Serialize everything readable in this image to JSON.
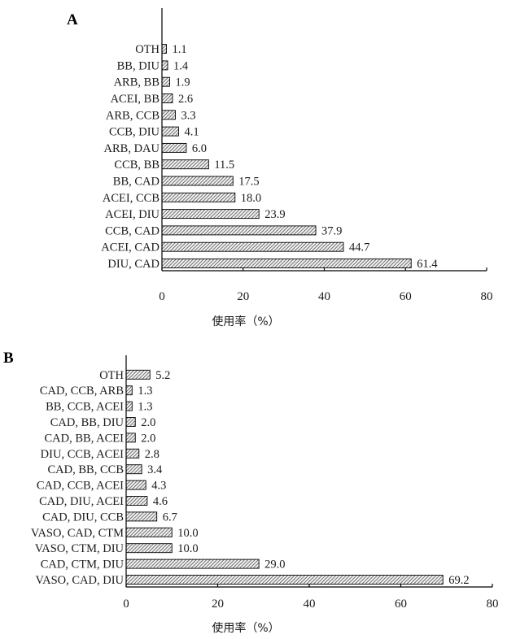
{
  "chart_data": [
    {
      "type": "bar",
      "orientation": "horizontal",
      "panel_label": "A",
      "categories": [
        "DIU, CAD",
        "ACEI, CAD",
        "CCB, CAD",
        "ACEI, DIU",
        "ACEI, CCB",
        "BB, CAD",
        "CCB, BB",
        "ARB, DAU",
        "CCB, DIU",
        "ARB, CCB",
        "ACEI, BB",
        "ARB, BB",
        "BB, DIU",
        "OTH"
      ],
      "values": [
        61.4,
        44.7,
        37.9,
        23.9,
        18.0,
        17.5,
        11.5,
        6.0,
        4.1,
        3.3,
        2.6,
        1.9,
        1.4,
        1.1
      ],
      "value_labels": [
        "61.4",
        "44.7",
        "37.9",
        "23.9",
        "18.0",
        "17.5",
        "11.5",
        "6.0",
        "4.1",
        "3.3",
        "2.6",
        "1.9",
        "1.4",
        "1.1"
      ],
      "xlabel": "使用率（%）",
      "xlim": [
        0,
        80
      ],
      "xticks": [
        "0",
        "20",
        "40",
        "60",
        "80"
      ],
      "grid": false,
      "bar_fill": "hatched"
    },
    {
      "type": "bar",
      "orientation": "horizontal",
      "panel_label": "B",
      "categories": [
        "VASO, CAD, DIU",
        "CAD, CTM, DIU",
        "VASO, CTM, DIU",
        "VASO, CAD, CTM",
        "CAD, DIU, CCB",
        "CAD, DIU, ACEI",
        "CAD, CCB, ACEI",
        "CAD, BB, CCB",
        "DIU, CCB, ACEI",
        "CAD, BB, ACEI",
        "CAD, BB, DIU",
        "BB, CCB, ACEI",
        "CAD, CCB, ARB",
        "OTH"
      ],
      "values": [
        69.2,
        29.0,
        10.0,
        10.0,
        6.7,
        4.6,
        4.3,
        3.4,
        2.8,
        2.0,
        2.0,
        1.3,
        1.3,
        5.2
      ],
      "value_labels": [
        "69.2",
        "29.0",
        "10.0",
        "10.0",
        "6.7",
        "4.6",
        "4.3",
        "3.4",
        "2.8",
        "2.0",
        "2.0",
        "1.3",
        "1.3",
        "5.2"
      ],
      "xlabel": "使用率（%）",
      "xlim": [
        0,
        80
      ],
      "xticks": [
        "0",
        "20",
        "40",
        "60",
        "80"
      ],
      "grid": false,
      "bar_fill": "hatched"
    }
  ]
}
